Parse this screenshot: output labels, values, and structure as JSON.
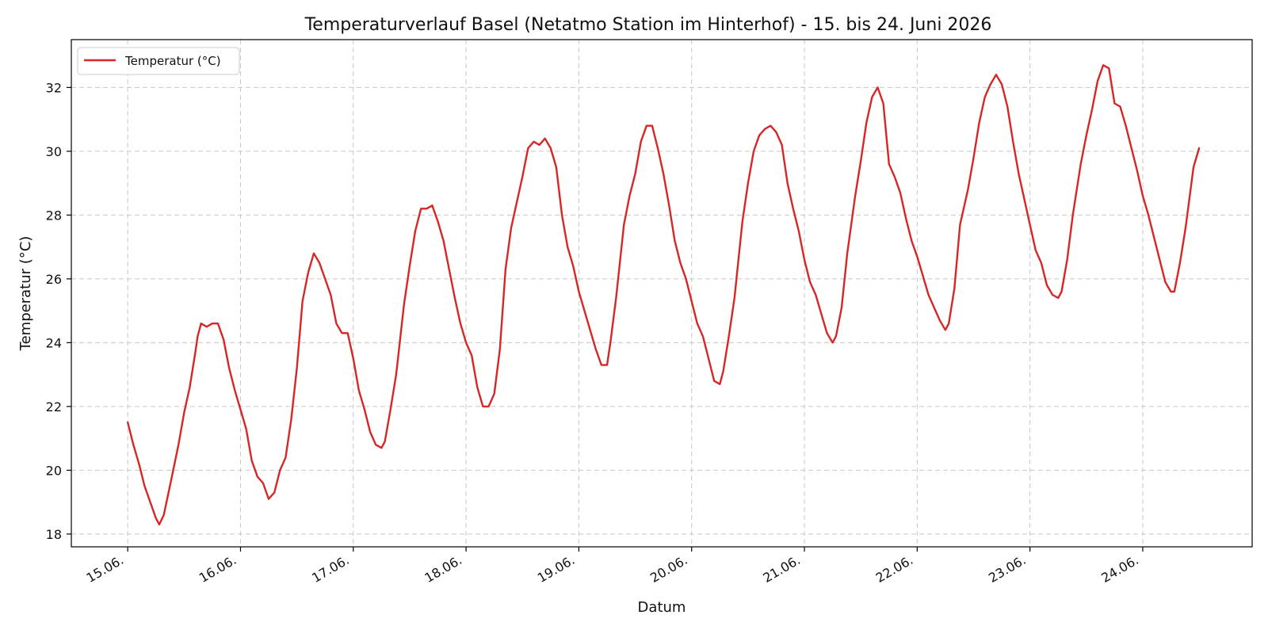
{
  "chart_data": {
    "type": "line",
    "title": "Temperaturverlauf Basel (Netatmo Station im Hinterhof) - 15. bis 24. Juni 2026",
    "xlabel": "Datum",
    "ylabel": "Temperatur (°C)",
    "legend_position": "top-left",
    "grid": true,
    "x_unit": "2026-06 day",
    "xlim": [
      14.5,
      24.97
    ],
    "ylim": [
      17.6,
      33.5
    ],
    "x_ticks": [
      15,
      16,
      17,
      18,
      19,
      20,
      21,
      22,
      23,
      24
    ],
    "x_tick_labels": [
      "15.06.",
      "16.06.",
      "17.06.",
      "18.06.",
      "19.06.",
      "20.06.",
      "21.06.",
      "22.06.",
      "23.06.",
      "24.06."
    ],
    "y_ticks": [
      18,
      20,
      22,
      24,
      26,
      28,
      30,
      32
    ],
    "y_tick_labels": [
      "18",
      "20",
      "22",
      "24",
      "26",
      "28",
      "30",
      "32"
    ],
    "series": [
      {
        "name": "Temperatur (°C)",
        "color": "#d62728",
        "x": [
          15.0,
          15.05,
          15.1,
          15.15,
          15.2,
          15.25,
          15.28,
          15.32,
          15.38,
          15.45,
          15.5,
          15.55,
          15.6,
          15.62,
          15.65,
          15.7,
          15.75,
          15.8,
          15.85,
          15.9,
          15.95,
          16.0,
          16.05,
          16.1,
          16.15,
          16.2,
          16.25,
          16.3,
          16.35,
          16.4,
          16.45,
          16.5,
          16.55,
          16.6,
          16.65,
          16.7,
          16.75,
          16.8,
          16.85,
          16.9,
          16.95,
          17.0,
          17.05,
          17.1,
          17.15,
          17.2,
          17.25,
          17.28,
          17.33,
          17.38,
          17.45,
          17.5,
          17.55,
          17.6,
          17.65,
          17.7,
          17.75,
          17.8,
          17.85,
          17.9,
          17.95,
          18.0,
          18.05,
          18.1,
          18.15,
          18.2,
          18.25,
          18.3,
          18.35,
          18.4,
          18.45,
          18.5,
          18.55,
          18.6,
          18.65,
          18.7,
          18.75,
          18.8,
          18.85,
          18.9,
          18.95,
          19.0,
          19.05,
          19.1,
          19.15,
          19.2,
          19.25,
          19.28,
          19.33,
          19.4,
          19.45,
          19.5,
          19.55,
          19.6,
          19.65,
          19.7,
          19.75,
          19.8,
          19.85,
          19.9,
          19.95,
          20.0,
          20.05,
          20.1,
          20.15,
          20.2,
          20.25,
          20.28,
          20.33,
          20.38,
          20.45,
          20.5,
          20.55,
          20.6,
          20.65,
          20.7,
          20.75,
          20.8,
          20.85,
          20.9,
          20.95,
          21.0,
          21.05,
          21.1,
          21.15,
          21.2,
          21.25,
          21.28,
          21.33,
          21.38,
          21.45,
          21.5,
          21.55,
          21.6,
          21.65,
          21.7,
          21.75,
          21.8,
          21.85,
          21.9,
          21.95,
          22.0,
          22.05,
          22.1,
          22.15,
          22.2,
          22.25,
          22.28,
          22.33,
          22.38,
          22.45,
          22.5,
          22.55,
          22.6,
          22.65,
          22.7,
          22.75,
          22.8,
          22.85,
          22.9,
          22.95,
          23.0,
          23.05,
          23.1,
          23.15,
          23.2,
          23.25,
          23.28,
          23.33,
          23.38,
          23.45,
          23.5,
          23.55,
          23.6,
          23.65,
          23.7,
          23.75,
          23.8,
          23.85,
          23.9,
          23.95,
          24.0,
          24.05,
          24.1,
          24.15,
          24.2,
          24.25,
          24.28,
          24.33,
          24.38,
          24.45,
          24.5
        ],
        "y": [
          21.5,
          20.8,
          20.2,
          19.5,
          19.0,
          18.5,
          18.3,
          18.6,
          19.6,
          20.8,
          21.8,
          22.6,
          23.7,
          24.2,
          24.6,
          24.5,
          24.6,
          24.6,
          24.1,
          23.2,
          22.5,
          21.9,
          21.3,
          20.3,
          19.8,
          19.6,
          19.1,
          19.3,
          20.0,
          20.4,
          21.6,
          23.2,
          25.3,
          26.2,
          26.8,
          26.5,
          26.0,
          25.5,
          24.6,
          24.3,
          24.3,
          23.5,
          22.5,
          21.9,
          21.2,
          20.8,
          20.7,
          20.9,
          21.9,
          23.0,
          25.2,
          26.4,
          27.5,
          28.2,
          28.2,
          28.3,
          27.8,
          27.2,
          26.3,
          25.4,
          24.6,
          24.0,
          23.6,
          22.6,
          22.0,
          22.0,
          22.4,
          23.8,
          26.3,
          27.6,
          28.4,
          29.2,
          30.1,
          30.3,
          30.2,
          30.4,
          30.1,
          29.5,
          28.0,
          27.0,
          26.4,
          25.6,
          25.0,
          24.4,
          23.8,
          23.3,
          23.3,
          24.0,
          25.4,
          27.7,
          28.6,
          29.3,
          30.3,
          30.8,
          30.8,
          30.1,
          29.3,
          28.3,
          27.2,
          26.5,
          26.0,
          25.3,
          24.6,
          24.2,
          23.5,
          22.8,
          22.7,
          23.1,
          24.2,
          25.4,
          27.8,
          29.0,
          30.0,
          30.5,
          30.7,
          30.8,
          30.6,
          30.2,
          29.0,
          28.2,
          27.5,
          26.6,
          25.9,
          25.5,
          24.9,
          24.3,
          24.0,
          24.2,
          25.1,
          26.8,
          28.6,
          29.7,
          30.9,
          31.7,
          32.0,
          31.5,
          29.6,
          29.2,
          28.7,
          27.9,
          27.2,
          26.7,
          26.1,
          25.5,
          25.1,
          24.7,
          24.4,
          24.6,
          25.7,
          27.7,
          28.8,
          29.8,
          30.9,
          31.7,
          32.1,
          32.4,
          32.1,
          31.4,
          30.3,
          29.3,
          28.5,
          27.7,
          26.9,
          26.5,
          25.8,
          25.5,
          25.4,
          25.6,
          26.6,
          28.0,
          29.6,
          30.5,
          31.3,
          32.2,
          32.7,
          32.6,
          31.5,
          31.4,
          30.8,
          30.1,
          29.4,
          28.6,
          28.0,
          27.3,
          26.6,
          25.9,
          25.6,
          25.6,
          26.5,
          27.6,
          29.5,
          30.1
        ]
      }
    ]
  }
}
